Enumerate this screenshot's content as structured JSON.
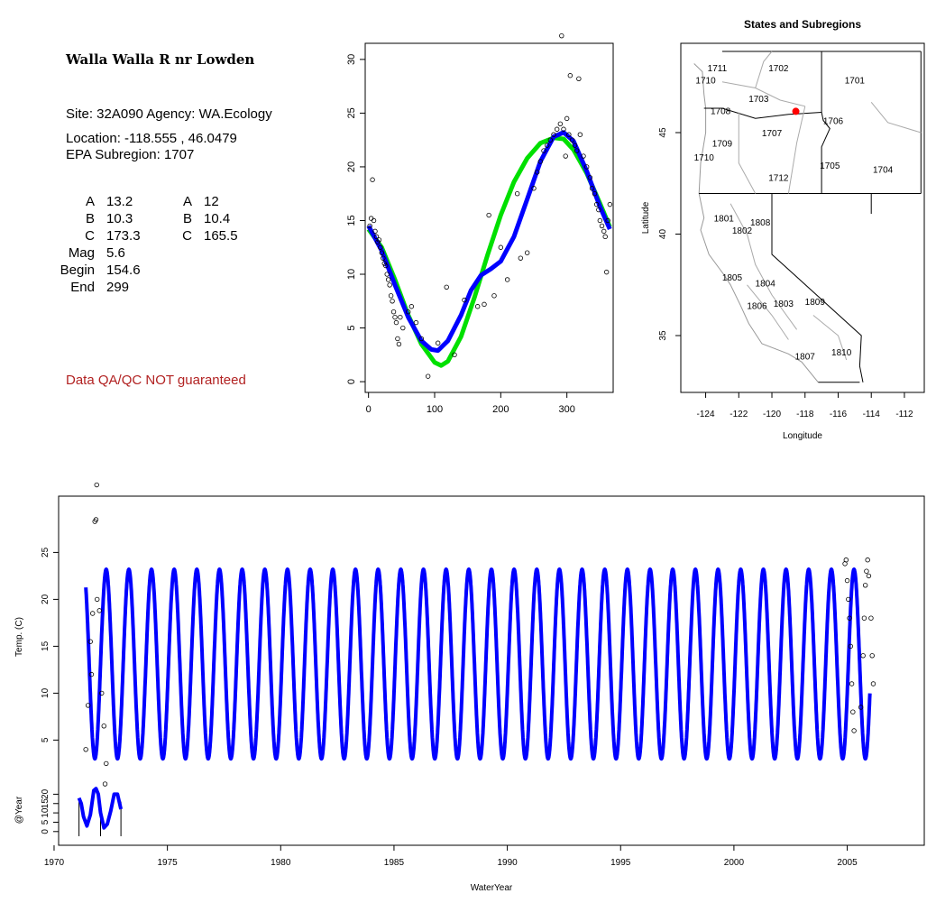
{
  "info": {
    "title": "Walla Walla R nr Lowden",
    "site_line": "Site: 32A090     Agency: WA.Ecology",
    "location_line": "Location: -118.555 , 46.0479",
    "subregion_line": "EPA Subregion: 1707",
    "params_left": [
      {
        "label": "A",
        "value": "13.2"
      },
      {
        "label": "B",
        "value": "10.3"
      },
      {
        "label": "C",
        "value": "173.3"
      },
      {
        "label": "Mag",
        "value": "5.6"
      },
      {
        "label": "Begin",
        "value": "154.6"
      },
      {
        "label": "End",
        "value": "299"
      }
    ],
    "params_right": [
      {
        "label": "A",
        "value": "12"
      },
      {
        "label": "B",
        "value": "10.4"
      },
      {
        "label": "C",
        "value": "165.5"
      }
    ],
    "qa_note": "Data QA/QC NOT guaranteed",
    "qa_color": "#b22222"
  },
  "chart_data": [
    {
      "type": "scatter",
      "title": "",
      "xlabel": "",
      "ylabel": "",
      "xlim": [
        -5,
        370
      ],
      "ylim": [
        -1,
        31.5
      ],
      "x_ticks": [
        "0",
        "100",
        "200",
        "300"
      ],
      "y_ticks": [
        "0",
        "5",
        "10",
        "15",
        "20",
        "25",
        "30"
      ],
      "points": [
        [
          2,
          14.5
        ],
        [
          4,
          15.2
        ],
        [
          6,
          18.8
        ],
        [
          8,
          15.0
        ],
        [
          10,
          14.0
        ],
        [
          12,
          13.5
        ],
        [
          14,
          13.0
        ],
        [
          16,
          13.2
        ],
        [
          18,
          12.5
        ],
        [
          20,
          12.0
        ],
        [
          22,
          11.5
        ],
        [
          24,
          11.0
        ],
        [
          26,
          10.8
        ],
        [
          28,
          10.0
        ],
        [
          30,
          9.5
        ],
        [
          32,
          9.0
        ],
        [
          34,
          8.0
        ],
        [
          36,
          7.5
        ],
        [
          38,
          6.5
        ],
        [
          40,
          6.0
        ],
        [
          42,
          5.5
        ],
        [
          44,
          4.0
        ],
        [
          46,
          3.5
        ],
        [
          48,
          6.0
        ],
        [
          52,
          5.0
        ],
        [
          60,
          6.5
        ],
        [
          65,
          7.0
        ],
        [
          72,
          5.5
        ],
        [
          80,
          4.0
        ],
        [
          90,
          0.5
        ],
        [
          105,
          3.6
        ],
        [
          118,
          8.8
        ],
        [
          130,
          2.5
        ],
        [
          145,
          7.6
        ],
        [
          165,
          7.0
        ],
        [
          175,
          7.2
        ],
        [
          182,
          15.5
        ],
        [
          190,
          8.0
        ],
        [
          200,
          12.5
        ],
        [
          210,
          9.5
        ],
        [
          225,
          17.5
        ],
        [
          230,
          11.5
        ],
        [
          240,
          12.0
        ],
        [
          250,
          18.0
        ],
        [
          255,
          19.5
        ],
        [
          260,
          20.5
        ],
        [
          265,
          21.5
        ],
        [
          270,
          22.0
        ],
        [
          275,
          22.5
        ],
        [
          280,
          23.0
        ],
        [
          285,
          23.5
        ],
        [
          290,
          24.0
        ],
        [
          292,
          32.2
        ],
        [
          295,
          23.5
        ],
        [
          298,
          21.0
        ],
        [
          300,
          24.5
        ],
        [
          303,
          23.0
        ],
        [
          305,
          28.5
        ],
        [
          308,
          22.5
        ],
        [
          312,
          22.0
        ],
        [
          315,
          21.5
        ],
        [
          318,
          28.2
        ],
        [
          320,
          23.0
        ],
        [
          325,
          21.0
        ],
        [
          330,
          20.0
        ],
        [
          335,
          19.0
        ],
        [
          338,
          18.0
        ],
        [
          342,
          17.5
        ],
        [
          345,
          16.5
        ],
        [
          348,
          16.0
        ],
        [
          350,
          15.0
        ],
        [
          353,
          14.5
        ],
        [
          356,
          14.0
        ],
        [
          358,
          13.5
        ],
        [
          360,
          10.2
        ],
        [
          362,
          15.0
        ],
        [
          365,
          16.5
        ]
      ],
      "series": [
        {
          "name": "",
          "color": "#00e000",
          "points": [
            [
              0,
              14.2
            ],
            [
              20,
              12.5
            ],
            [
              40,
              9.5
            ],
            [
              60,
              6.2
            ],
            [
              80,
              3.5
            ],
            [
              100,
              1.8
            ],
            [
              110,
              1.5
            ],
            [
              120,
              1.9
            ],
            [
              140,
              4.2
            ],
            [
              160,
              7.8
            ],
            [
              180,
              11.8
            ],
            [
              200,
              15.5
            ],
            [
              220,
              18.6
            ],
            [
              240,
              20.8
            ],
            [
              260,
              22.2
            ],
            [
              280,
              22.7
            ],
            [
              295,
              22.6
            ],
            [
              310,
              21.6
            ],
            [
              330,
              19.4
            ],
            [
              350,
              16.6
            ],
            [
              365,
              14.4
            ]
          ]
        },
        {
          "name": "",
          "color": "#0000ff",
          "points": [
            [
              0,
              14.5
            ],
            [
              20,
              12.2
            ],
            [
              40,
              9.0
            ],
            [
              60,
              6.0
            ],
            [
              80,
              3.8
            ],
            [
              95,
              3.0
            ],
            [
              105,
              2.9
            ],
            [
              120,
              3.8
            ],
            [
              140,
              6.2
            ],
            [
              155,
              8.5
            ],
            [
              170,
              9.9
            ],
            [
              185,
              10.5
            ],
            [
              200,
              11.2
            ],
            [
              220,
              13.5
            ],
            [
              240,
              17.0
            ],
            [
              260,
              20.5
            ],
            [
              280,
              22.8
            ],
            [
              295,
              23.2
            ],
            [
              310,
              22.4
            ],
            [
              330,
              19.6
            ],
            [
              350,
              16.3
            ],
            [
              365,
              14.2
            ]
          ]
        }
      ]
    },
    {
      "type": "map",
      "title": "States and Subregions",
      "xlabel": "Longitude",
      "ylabel": "Latitude",
      "xlim": [
        -125.5,
        -110.8
      ],
      "ylim": [
        32.2,
        49.4
      ],
      "x_ticks": [
        "-124",
        "-122",
        "-120",
        "-118",
        "-116",
        "-114",
        "-112"
      ],
      "y_ticks": [
        "35",
        "40",
        "45"
      ],
      "site": {
        "lon": -118.555,
        "lat": 46.0479,
        "color": "#ff0000"
      },
      "region_labels": [
        {
          "text": "1711",
          "lon": -123.3,
          "lat": 48.2
        },
        {
          "text": "1702",
          "lon": -119.6,
          "lat": 48.2
        },
        {
          "text": "1710",
          "lon": -124.0,
          "lat": 47.6
        },
        {
          "text": "1701",
          "lon": -115.0,
          "lat": 47.6
        },
        {
          "text": "1703",
          "lon": -120.8,
          "lat": 46.7
        },
        {
          "text": "1708",
          "lon": -123.1,
          "lat": 46.1
        },
        {
          "text": "1706",
          "lon": -116.3,
          "lat": 45.6
        },
        {
          "text": "1707",
          "lon": -120.0,
          "lat": 45.0
        },
        {
          "text": "1709",
          "lon": -123.0,
          "lat": 44.5
        },
        {
          "text": "1710",
          "lon": -124.1,
          "lat": 43.8
        },
        {
          "text": "1705",
          "lon": -116.5,
          "lat": 43.4
        },
        {
          "text": "1704",
          "lon": -113.3,
          "lat": 43.2
        },
        {
          "text": "1712",
          "lon": -119.6,
          "lat": 42.8
        },
        {
          "text": "1801",
          "lon": -122.9,
          "lat": 40.8
        },
        {
          "text": "1808",
          "lon": -120.7,
          "lat": 40.6
        },
        {
          "text": "1802",
          "lon": -121.8,
          "lat": 40.2
        },
        {
          "text": "1805",
          "lon": -122.4,
          "lat": 37.9
        },
        {
          "text": "1804",
          "lon": -120.4,
          "lat": 37.6
        },
        {
          "text": "1806",
          "lon": -120.9,
          "lat": 36.5
        },
        {
          "text": "1803",
          "lon": -119.3,
          "lat": 36.6
        },
        {
          "text": "1809",
          "lon": -117.4,
          "lat": 36.7
        },
        {
          "text": "1807",
          "lon": -118.0,
          "lat": 34.0
        },
        {
          "text": "1810",
          "lon": -115.8,
          "lat": 34.2
        }
      ]
    },
    {
      "type": "line",
      "title": "",
      "xlabel": "WaterYear",
      "ylabel": "Temp. (C)",
      "xlim": [
        1970.2,
        2008.4
      ],
      "ylim": [
        1,
        31
      ],
      "x_ticks": [
        "1970",
        "1975",
        "1980",
        "1985",
        "1990",
        "1995",
        "2000",
        "2005"
      ],
      "y_ticks": [
        "5",
        "10",
        "15",
        "20",
        "25"
      ],
      "series": [
        {
          "name": "",
          "color": "#0000ff",
          "x_start": 1971.4,
          "x_end": 2006.0,
          "min": 3.0,
          "max": 23.2
        }
      ],
      "observed_points": [
        [
          1971.4,
          4.0
        ],
        [
          1971.5,
          8.7
        ],
        [
          1971.6,
          15.5
        ],
        [
          1971.65,
          12.0
        ],
        [
          1971.7,
          18.5
        ],
        [
          1971.8,
          28.3
        ],
        [
          1971.85,
          28.5
        ],
        [
          1971.88,
          32.2
        ],
        [
          1971.9,
          20.0
        ],
        [
          1972.0,
          18.8
        ],
        [
          1972.1,
          10.0
        ],
        [
          1972.2,
          6.5
        ],
        [
          1972.3,
          2.5
        ],
        [
          2004.9,
          23.8
        ],
        [
          2004.95,
          24.2
        ],
        [
          2005.0,
          22.0
        ],
        [
          2005.05,
          20.0
        ],
        [
          2005.1,
          18.0
        ],
        [
          2005.15,
          15.0
        ],
        [
          2005.2,
          11.0
        ],
        [
          2005.25,
          8.0
        ],
        [
          2005.3,
          6.0
        ],
        [
          2005.6,
          8.5
        ],
        [
          2005.7,
          14.0
        ],
        [
          2005.75,
          18.0
        ],
        [
          2005.8,
          21.5
        ],
        [
          2005.85,
          23.0
        ],
        [
          2005.9,
          24.2
        ],
        [
          2005.95,
          22.5
        ],
        [
          2006.05,
          18.0
        ],
        [
          2006.1,
          14.0
        ],
        [
          2006.15,
          11.0
        ]
      ]
    },
    {
      "type": "line",
      "title": "",
      "xlabel": "",
      "ylabel": "@Year",
      "xlim": [
        1970.2,
        2008.4
      ],
      "ylim": [
        -3,
        26
      ],
      "y_ticks": [
        "0",
        "5",
        "10",
        "15",
        "20"
      ],
      "series": [
        {
          "name": "",
          "color": "#0000ff",
          "points": [
            [
              1971.1,
              18.0
            ],
            [
              1971.2,
              15.0
            ],
            [
              1971.3,
              8.0
            ],
            [
              1971.45,
              3.0
            ],
            [
              1971.6,
              9.0
            ],
            [
              1971.75,
              22.0
            ],
            [
              1971.85,
              23.0
            ],
            [
              1971.95,
              20.0
            ],
            [
              1972.05,
              10.0
            ],
            [
              1972.2,
              2.0
            ],
            [
              1972.35,
              4.0
            ],
            [
              1972.5,
              11.0
            ],
            [
              1972.65,
              20.0
            ],
            [
              1972.8,
              20.0
            ],
            [
              1972.95,
              12.0
            ]
          ]
        }
      ],
      "points": [
        [
          1972.25,
          25.5
        ]
      ]
    }
  ]
}
